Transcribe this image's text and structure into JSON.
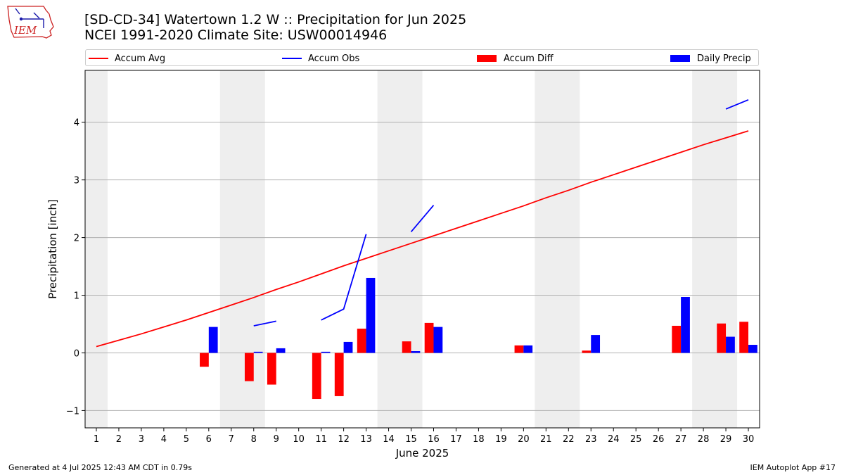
{
  "header": {
    "title": "[SD-CD-34] Watertown 1.2 W :: Precipitation for Jun 2025",
    "subtitle": "NCEI 1991-2020 Climate Site: USW00014946"
  },
  "logo": {
    "text": "IEM",
    "icon": "iowa-map-weather-logo"
  },
  "legend": {
    "items": [
      {
        "label": "Accum Avg",
        "kind": "line",
        "color": "#ff0000"
      },
      {
        "label": "Accum Obs",
        "kind": "line",
        "color": "#0000ff"
      },
      {
        "label": "Accum Diff",
        "kind": "bar",
        "color": "#ff0000"
      },
      {
        "label": "Daily Precip",
        "kind": "bar",
        "color": "#0000ff"
      }
    ]
  },
  "footer": {
    "left": "Generated at 4 Jul 2025 12:43 AM CDT in 0.79s",
    "right": "IEM Autoplot App #17"
  },
  "colors": {
    "avg": "#ff0000",
    "obs": "#0000ff",
    "weekend_band": "#eeeeee",
    "grid": "#b0b0b0"
  },
  "chart_data": {
    "type": "bar",
    "xlabel": "June 2025",
    "ylabel": "Precipitation [inch]",
    "xlim": [
      0.5,
      30.5
    ],
    "ylim": [
      -1.3,
      4.9
    ],
    "yticks": [
      -1,
      0,
      1,
      2,
      3,
      4
    ],
    "ytick_labels": [
      "−1",
      "0",
      "1",
      "2",
      "3",
      "4"
    ],
    "x": [
      1,
      2,
      3,
      4,
      5,
      6,
      7,
      8,
      9,
      10,
      11,
      12,
      13,
      14,
      15,
      16,
      17,
      18,
      19,
      20,
      21,
      22,
      23,
      24,
      25,
      26,
      27,
      28,
      29,
      30
    ],
    "weekend_bands": [
      [
        0.5,
        1.5
      ],
      [
        6.5,
        8.5
      ],
      [
        13.5,
        15.5
      ],
      [
        20.5,
        22.5
      ],
      [
        27.5,
        29.5
      ]
    ],
    "grid": "horizontal",
    "series": [
      {
        "name": "Accum Avg",
        "type": "line",
        "values": [
          0.11,
          0.22,
          0.33,
          0.45,
          0.57,
          0.7,
          0.83,
          0.96,
          1.1,
          1.23,
          1.37,
          1.51,
          1.64,
          1.77,
          1.9,
          2.03,
          2.16,
          2.29,
          2.42,
          2.55,
          2.69,
          2.82,
          2.96,
          3.09,
          3.22,
          3.35,
          3.48,
          3.61,
          3.73,
          3.85
        ]
      },
      {
        "name": "Accum Obs",
        "type": "line",
        "values": [
          null,
          null,
          null,
          null,
          null,
          null,
          null,
          0.47,
          0.55,
          null,
          0.57,
          0.76,
          2.06,
          null,
          2.1,
          2.56,
          null,
          null,
          null,
          null,
          null,
          null,
          null,
          null,
          null,
          null,
          null,
          null,
          4.23,
          4.39
        ]
      },
      {
        "name": "Accum Diff",
        "type": "bar",
        "values": [
          0,
          0,
          0,
          0,
          0,
          -0.24,
          0,
          -0.49,
          -0.55,
          0,
          -0.8,
          -0.75,
          0.42,
          0,
          0.2,
          0.52,
          0,
          0,
          0,
          0.13,
          0,
          0,
          0.04,
          0,
          0,
          0,
          0.47,
          0,
          0.51,
          0.54
        ]
      },
      {
        "name": "Daily Precip",
        "type": "bar",
        "values": [
          0,
          0,
          0,
          0,
          0,
          0.45,
          0,
          0.02,
          0.08,
          0,
          0.02,
          0.19,
          1.3,
          0,
          0.03,
          0.45,
          0,
          0,
          0,
          0.13,
          0,
          0,
          0.31,
          0,
          0,
          0,
          0.97,
          0,
          0.28,
          0.14
        ]
      }
    ]
  }
}
